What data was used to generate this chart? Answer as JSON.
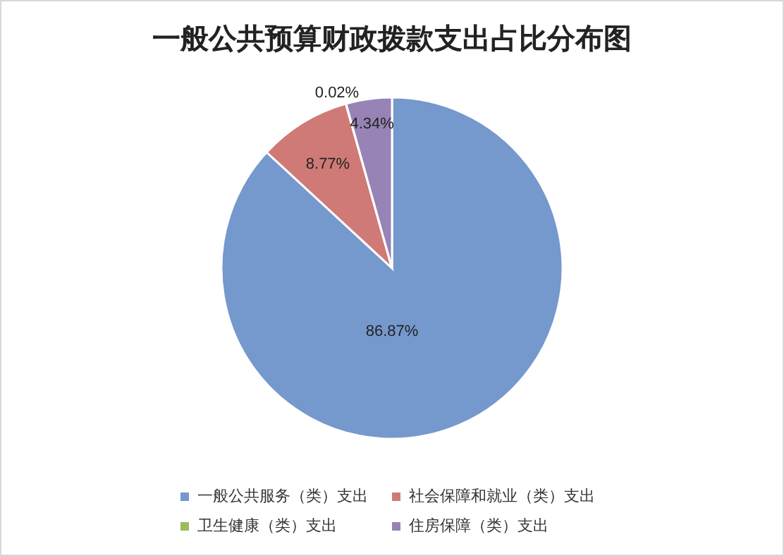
{
  "chart_data": {
    "type": "pie",
    "title": "一般公共预算财政拨款支出占比分布图",
    "categories": [
      "一般公共服务（类）支出",
      "社会保障和就业（类）支出",
      "卫生健康（类）支出",
      "住房保障（类）支出"
    ],
    "values": [
      86.87,
      8.77,
      0.02,
      4.34
    ],
    "value_labels": [
      "86.87%",
      "8.77%",
      "0.02%",
      "4.34%"
    ],
    "colors": [
      "#7598cd",
      "#cf7a77",
      "#9bbb59",
      "#9783b5"
    ],
    "legend": "bottom"
  }
}
